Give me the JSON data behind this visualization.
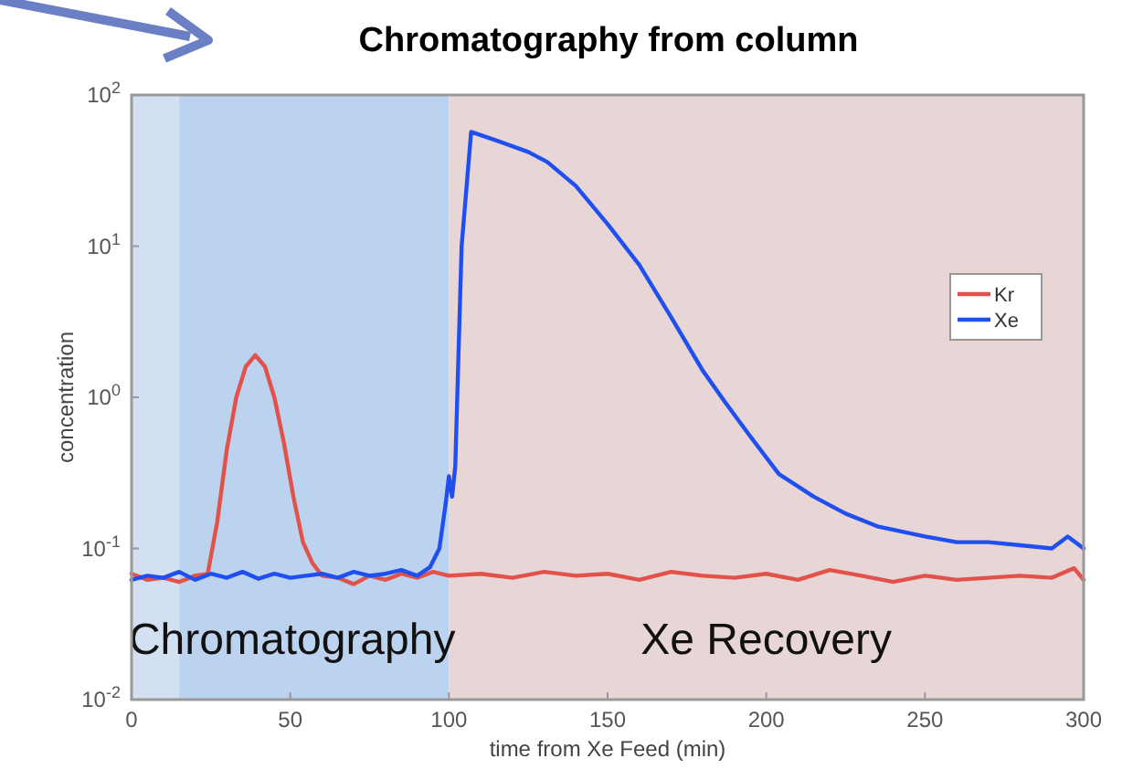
{
  "chart_data": {
    "type": "line",
    "title": "Chromatography from column",
    "xlabel": "time from Xe Feed (min)",
    "ylabel": "concentration",
    "log": "y",
    "xlim": [
      0,
      300
    ],
    "xticks": [
      0,
      50,
      100,
      150,
      200,
      250,
      300
    ],
    "ylim": [
      0.01,
      100
    ],
    "yticks": [
      {
        "value": 0.01,
        "label": "10$^{-2}$"
      },
      {
        "value": 0.1,
        "label": "10$^{-1}$"
      },
      {
        "value": 1,
        "label": "10$^{0}$"
      },
      {
        "value": 10,
        "label": "10$^{1}$"
      },
      {
        "value": 100,
        "label": "10$^{2}$"
      }
    ],
    "grid": false,
    "legend": "right",
    "line_style": "solid",
    "marker": "none",
    "bands": [
      {
        "axis": "x",
        "from": 0,
        "to": 15,
        "color": "#d3e0f2"
      },
      {
        "axis": "x",
        "from": 15,
        "to": 100,
        "label": "Chromatography",
        "color": "#bcd3f0"
      },
      {
        "axis": "x",
        "from": 100,
        "to": 300,
        "label": "Xe Recovery",
        "color": "#e8d6d7"
      }
    ],
    "series": [
      {
        "name": "Kr",
        "color": "#e0524a",
        "x": [
          0,
          5,
          10,
          15,
          20,
          24,
          27,
          30,
          33,
          36,
          39,
          42,
          45,
          48,
          51,
          54,
          57,
          60,
          65,
          70,
          75,
          80,
          85,
          90,
          95,
          100,
          110,
          120,
          130,
          140,
          150,
          160,
          170,
          180,
          190,
          200,
          210,
          220,
          230,
          240,
          250,
          260,
          270,
          280,
          290,
          297,
          300
        ],
        "values": [
          0.068,
          0.062,
          0.064,
          0.06,
          0.066,
          0.068,
          0.15,
          0.45,
          1.0,
          1.6,
          1.9,
          1.6,
          1.0,
          0.5,
          0.22,
          0.11,
          0.08,
          0.066,
          0.064,
          0.058,
          0.066,
          0.062,
          0.068,
          0.064,
          0.07,
          0.066,
          0.068,
          0.064,
          0.07,
          0.066,
          0.068,
          0.062,
          0.07,
          0.066,
          0.064,
          0.068,
          0.062,
          0.072,
          0.066,
          0.06,
          0.066,
          0.062,
          0.064,
          0.066,
          0.064,
          0.074,
          0.062
        ]
      },
      {
        "name": "Xe",
        "color": "#1f4fef",
        "x": [
          0,
          5,
          10,
          15,
          20,
          25,
          30,
          35,
          40,
          45,
          50,
          55,
          60,
          65,
          70,
          75,
          80,
          85,
          90,
          94,
          97,
          99,
          100,
          101,
          102,
          104,
          107,
          115,
          125,
          131,
          140,
          150,
          160,
          170,
          180,
          187,
          195,
          204,
          215,
          225,
          235,
          250,
          260,
          270,
          280,
          290,
          295,
          300
        ],
        "values": [
          0.062,
          0.066,
          0.064,
          0.07,
          0.062,
          0.068,
          0.064,
          0.07,
          0.063,
          0.068,
          0.064,
          0.066,
          0.068,
          0.064,
          0.07,
          0.066,
          0.068,
          0.072,
          0.066,
          0.075,
          0.1,
          0.2,
          0.3,
          0.22,
          0.35,
          10,
          57,
          50,
          42,
          36,
          25,
          14,
          7.5,
          3.4,
          1.5,
          0.93,
          0.55,
          0.31,
          0.22,
          0.17,
          0.14,
          0.12,
          0.11,
          0.11,
          0.105,
          0.1,
          0.12,
          0.1
        ]
      }
    ]
  }
}
